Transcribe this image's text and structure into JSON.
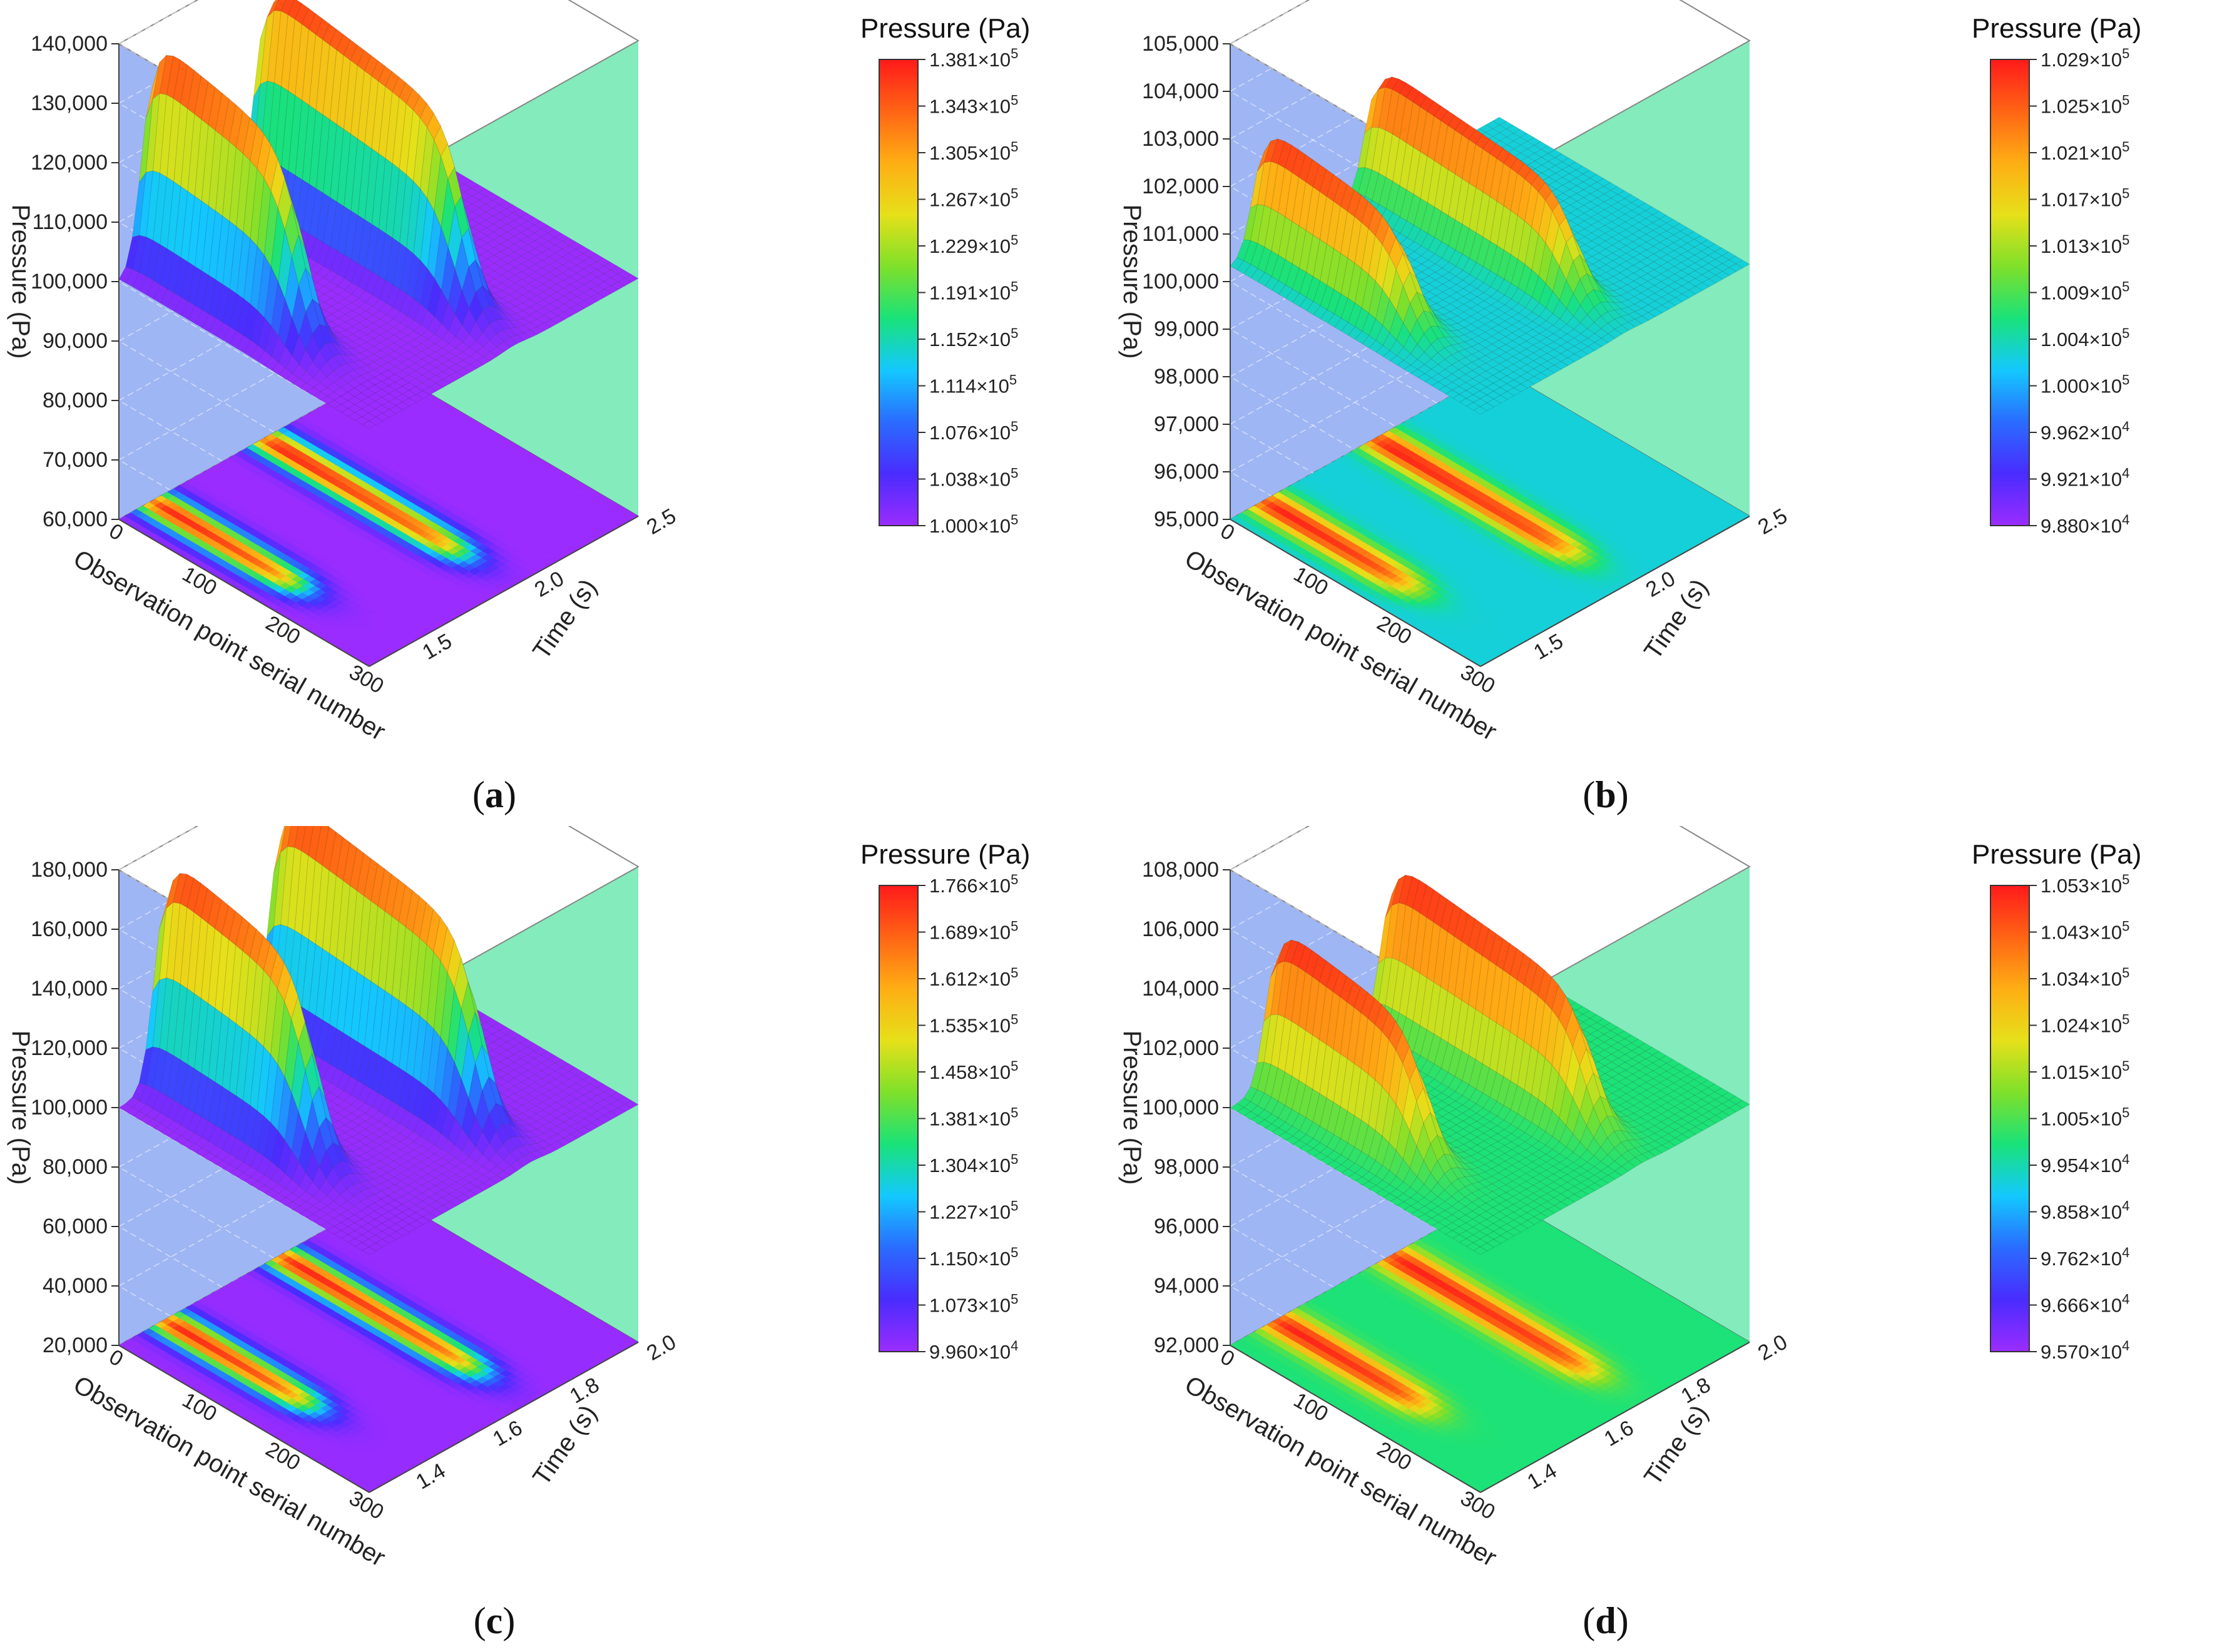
{
  "chart_data": [
    {
      "type": "heatmap",
      "panel_label": "(a)",
      "surface_style": "3D surface with contour projection on base",
      "xlabel": "Observation point serial number",
      "ylabel": "Time (s)",
      "zlabel": "Pressure (Pa)",
      "x_ticks": [
        "0",
        "100",
        "200",
        "300"
      ],
      "y_ticks": [
        "1.5",
        "2.0",
        "2.5"
      ],
      "z_ticks": [
        "60,000",
        "70,000",
        "80,000",
        "90,000",
        "100,000",
        "110,000",
        "120,000",
        "130,000",
        "140,000"
      ],
      "zlim": [
        60000,
        140000
      ],
      "xlim": [
        0,
        300
      ],
      "ylim": [
        1.3,
        2.5
      ],
      "colorbar_title": "Pressure (Pa)",
      "colorbar_ticks": [
        "1.381×10<sup>5</sup>",
        "1.343×10<sup>5</sup>",
        "1.305×10<sup>5</sup>",
        "1.267×10<sup>5</sup>",
        "1.229×10<sup>5</sup>",
        "1.191×10<sup>5</sup>",
        "1.152×10<sup>5</sup>",
        "1.114×10<sup>5</sup>",
        "1.076×10<sup>5</sup>",
        "1.038×10<sup>5</sup>",
        "1.000×10<sup>5</sup>"
      ],
      "colorbar_range": [
        100000,
        138100
      ],
      "pulses": [
        {
          "observation_point_start": 0,
          "observation_point_end": 180,
          "time_center": 1.45,
          "peak_pressure": 138100
        },
        {
          "observation_point_start": 0,
          "observation_point_end": 240,
          "time_center": 1.95,
          "peak_pressure": 138100
        }
      ],
      "baseline_pressure": 100000
    },
    {
      "type": "heatmap",
      "panel_label": "(b)",
      "surface_style": "3D surface with contour projection on base",
      "xlabel": "Observation point serial number",
      "ylabel": "Time (s)",
      "zlabel": "Pressure (Pa)",
      "x_ticks": [
        "0",
        "100",
        "200",
        "300"
      ],
      "y_ticks": [
        "1.5",
        "2.0",
        "2.5"
      ],
      "z_ticks": [
        "95,000",
        "96,000",
        "97,000",
        "98,000",
        "99,000",
        "100,000",
        "101,000",
        "102,000",
        "103,000",
        "104,000",
        "105,000"
      ],
      "zlim": [
        95000,
        105000
      ],
      "xlim": [
        0,
        300
      ],
      "ylim": [
        1.3,
        2.5
      ],
      "colorbar_title": "Pressure (Pa)",
      "colorbar_ticks": [
        "1.029×10<sup>5</sup>",
        "1.025×10<sup>5</sup>",
        "1.021×10<sup>5</sup>",
        "1.017×10<sup>5</sup>",
        "1.013×10<sup>5</sup>",
        "1.009×10<sup>5</sup>",
        "1.004×10<sup>5</sup>",
        "1.000×10<sup>5</sup>",
        "9.962×10<sup>4</sup>",
        "9.921×10<sup>4</sup>",
        "9.880×10<sup>4</sup>"
      ],
      "colorbar_range": [
        98800,
        102900
      ],
      "pulses": [
        {
          "observation_point_start": 0,
          "observation_point_end": 180,
          "time_center": 1.45,
          "peak_pressure": 102900
        },
        {
          "observation_point_start": 0,
          "observation_point_end": 240,
          "time_center": 1.95,
          "peak_pressure": 102900
        }
      ],
      "baseline_pressure": 100300
    },
    {
      "type": "heatmap",
      "panel_label": "(c)",
      "surface_style": "3D surface with contour projection on base",
      "xlabel": "Observation point serial number",
      "ylabel": "Time (s)",
      "zlabel": "Pressure (Pa)",
      "x_ticks": [
        "0",
        "100",
        "200",
        "300"
      ],
      "y_ticks": [
        "1.4",
        "1.6",
        "1.8",
        "2.0"
      ],
      "z_ticks": [
        "20,000",
        "40,000",
        "60,000",
        "80,000",
        "100,000",
        "120,000",
        "140,000",
        "160,000",
        "180,000"
      ],
      "zlim": [
        20000,
        180000
      ],
      "xlim": [
        0,
        300
      ],
      "ylim": [
        1.3,
        2.0
      ],
      "colorbar_title": "Pressure (Pa)",
      "colorbar_ticks": [
        "1.766×10<sup>5</sup>",
        "1.689×10<sup>5</sup>",
        "1.612×10<sup>5</sup>",
        "1.535×10<sup>5</sup>",
        "1.458×10<sup>5</sup>",
        "1.381×10<sup>5</sup>",
        "1.304×10<sup>5</sup>",
        "1.227×10<sup>5</sup>",
        "1.150×10<sup>5</sup>",
        "1.073×10<sup>5</sup>",
        "9.960×10<sup>4</sup>"
      ],
      "colorbar_range": [
        99600,
        176600
      ],
      "pulses": [
        {
          "observation_point_start": 0,
          "observation_point_end": 180,
          "time_center": 1.42,
          "peak_pressure": 176600
        },
        {
          "observation_point_start": 0,
          "observation_point_end": 240,
          "time_center": 1.72,
          "peak_pressure": 176600
        }
      ],
      "baseline_pressure": 100000
    },
    {
      "type": "heatmap",
      "panel_label": "(d)",
      "surface_style": "3D surface with contour projection on base",
      "xlabel": "Observation point serial number",
      "ylabel": "Time (s)",
      "zlabel": "Pressure (Pa)",
      "x_ticks": [
        "0",
        "100",
        "200",
        "300"
      ],
      "y_ticks": [
        "1.4",
        "1.6",
        "1.8",
        "2.0"
      ],
      "z_ticks": [
        "92,000",
        "94,000",
        "96,000",
        "98,000",
        "100,000",
        "102,000",
        "104,000",
        "106,000",
        "108,000"
      ],
      "zlim": [
        92000,
        108000
      ],
      "xlim": [
        0,
        300
      ],
      "ylim": [
        1.3,
        2.0
      ],
      "colorbar_title": "Pressure (Pa)",
      "colorbar_ticks": [
        "1.053×10<sup>5</sup>",
        "1.043×10<sup>5</sup>",
        "1.034×10<sup>5</sup>",
        "1.024×10<sup>5</sup>",
        "1.015×10<sup>5</sup>",
        "1.005×10<sup>5</sup>",
        "9.954×10<sup>4</sup>",
        "9.858×10<sup>4</sup>",
        "9.762×10<sup>4</sup>",
        "9.666×10<sup>4</sup>",
        "9.570×10<sup>4</sup>"
      ],
      "colorbar_range": [
        95700,
        105300
      ],
      "pulses": [
        {
          "observation_point_start": 0,
          "observation_point_end": 180,
          "time_center": 1.42,
          "peak_pressure": 105300
        },
        {
          "observation_point_start": 0,
          "observation_point_end": 240,
          "time_center": 1.72,
          "peak_pressure": 105300
        }
      ],
      "baseline_pressure": 100000
    }
  ],
  "colors": {
    "left_wall": "#7f9ef0",
    "right_wall": "#6ee8b0",
    "colormap": [
      "#9b2cff",
      "#4a2cff",
      "#2a6bff",
      "#14c8ff",
      "#19e27a",
      "#7fe02a",
      "#e6e01a",
      "#ffae14",
      "#ff6414",
      "#ff1a1a"
    ]
  }
}
